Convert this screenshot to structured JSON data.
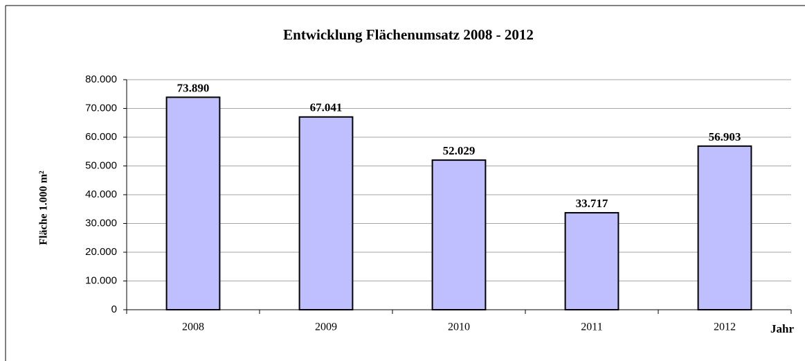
{
  "chart_data": {
    "type": "bar",
    "title": "Entwicklung Flächenumsatz 2008 - 2012",
    "y_label": "Fläche 1.000 m²",
    "x_label": "Jahr",
    "categories": [
      "2008",
      "2009",
      "2010",
      "2011",
      "2012"
    ],
    "values": [
      73890,
      67041,
      52029,
      33717,
      56903
    ],
    "value_labels": [
      "73.890",
      "67.041",
      "52.029",
      "33.717",
      "56.903"
    ],
    "color": "#bfbfff",
    "ylim": [
      0,
      80000
    ],
    "yticks": [
      0,
      {
        "value": 10000,
        "label": "10.000"
      },
      {
        "value": 20000,
        "label": "20.000"
      },
      {
        "value": 30000,
        "label": "30.000"
      },
      {
        "value": 40000,
        "label": "40.000"
      },
      {
        "value": 50000,
        "label": "50.000"
      },
      {
        "value": 60000,
        "label": "60.000"
      },
      {
        "value": 70000,
        "label": "70.000"
      },
      {
        "value": 80000,
        "label": "80.000"
      }
    ],
    "grid": true
  }
}
